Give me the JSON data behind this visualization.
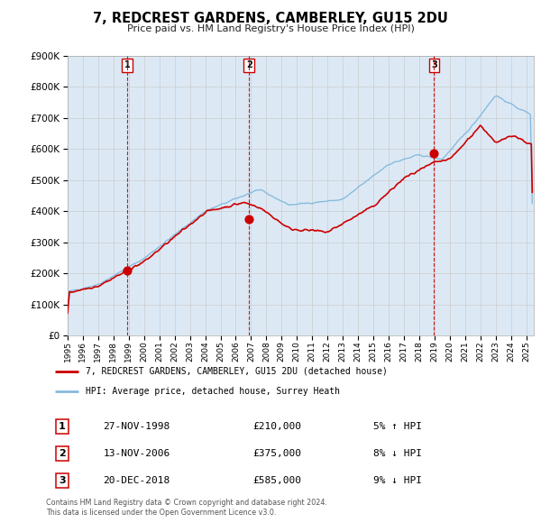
{
  "title": "7, REDCREST GARDENS, CAMBERLEY, GU15 2DU",
  "subtitle": "Price paid vs. HM Land Registry's House Price Index (HPI)",
  "bg_color": "#dce9f5",
  "outer_bg_color": "#ffffff",
  "ylim": [
    0,
    900000
  ],
  "xlim_start": 1995.0,
  "xlim_end": 2025.5,
  "yticks": [
    0,
    100000,
    200000,
    300000,
    400000,
    500000,
    600000,
    700000,
    800000,
    900000
  ],
  "xticks": [
    1995,
    1996,
    1997,
    1998,
    1999,
    2000,
    2001,
    2002,
    2003,
    2004,
    2005,
    2006,
    2007,
    2008,
    2009,
    2010,
    2011,
    2012,
    2013,
    2014,
    2015,
    2016,
    2017,
    2018,
    2019,
    2020,
    2021,
    2022,
    2023,
    2024,
    2025
  ],
  "sale_color": "#cc0000",
  "hpi_color": "#88bbdd",
  "sale_linewidth": 1.2,
  "hpi_linewidth": 1.0,
  "purchases": [
    {
      "num": 1,
      "date_label": "27-NOV-1998",
      "year": 1998.9,
      "price": 210000,
      "pct": "5%",
      "dir": "↑"
    },
    {
      "num": 2,
      "date_label": "13-NOV-2006",
      "year": 2006.87,
      "price": 375000,
      "pct": "8%",
      "dir": "↓"
    },
    {
      "num": 3,
      "date_label": "20-DEC-2018",
      "year": 2018.97,
      "price": 585000,
      "pct": "9%",
      "dir": "↓"
    }
  ],
  "vline_color": "#cc0000",
  "dot_color": "#cc0000",
  "dot_size": 40,
  "legend_label_sale": "7, REDCREST GARDENS, CAMBERLEY, GU15 2DU (detached house)",
  "legend_label_hpi": "HPI: Average price, detached house, Surrey Heath",
  "footer1": "Contains HM Land Registry data © Crown copyright and database right 2024.",
  "footer2": "This data is licensed under the Open Government Licence v3.0.",
  "number_box_color": "#cc0000",
  "grid_color": "#cccccc"
}
